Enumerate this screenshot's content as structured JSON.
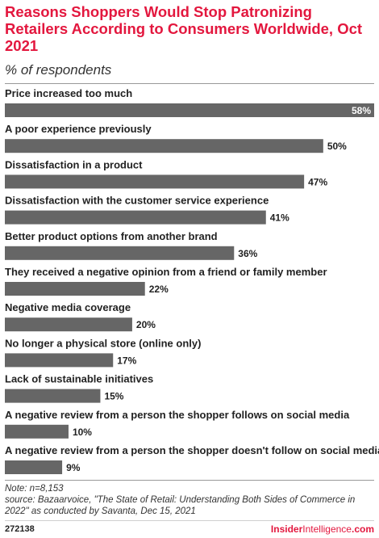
{
  "header": {
    "title": "Reasons Shoppers Would Stop Patronizing Retailers According to Consumers Worldwide, Oct 2021",
    "subtitle": "% of respondents"
  },
  "chart_data": {
    "type": "bar",
    "orientation": "horizontal",
    "categories": [
      "Price increased too much",
      "A poor experience previously",
      "Dissatisfaction in a product",
      "Dissatisfaction with the customer service experience",
      "Better product options from another brand",
      "They received a negative opinion from a friend or family member",
      "Negative media coverage",
      "No longer a physical store (online only)",
      "Lack of sustainable initiatives",
      "A negative review from a person the shopper follows on social media",
      "A negative review from a person the shopper doesn't follow on social media"
    ],
    "values": [
      58,
      50,
      47,
      41,
      36,
      22,
      20,
      17,
      15,
      10,
      9
    ],
    "value_labels": [
      "58%",
      "50%",
      "47%",
      "41%",
      "36%",
      "22%",
      "20%",
      "17%",
      "15%",
      "10%",
      "9%"
    ],
    "bar_color": "#666666",
    "xlim": [
      0,
      58
    ],
    "grid": false
  },
  "notes": {
    "note": "Note: n=8,153",
    "source": "source: Bazaarvoice, \"The State of Retail: Understanding Both Sides of Commerce in 2022\" as conducted by Savanta, Dec 15, 2021"
  },
  "footer": {
    "chart_id": "272138",
    "brand_bold": "Insider",
    "brand_thin": "Intelligence",
    "brand_tail": ".com"
  }
}
